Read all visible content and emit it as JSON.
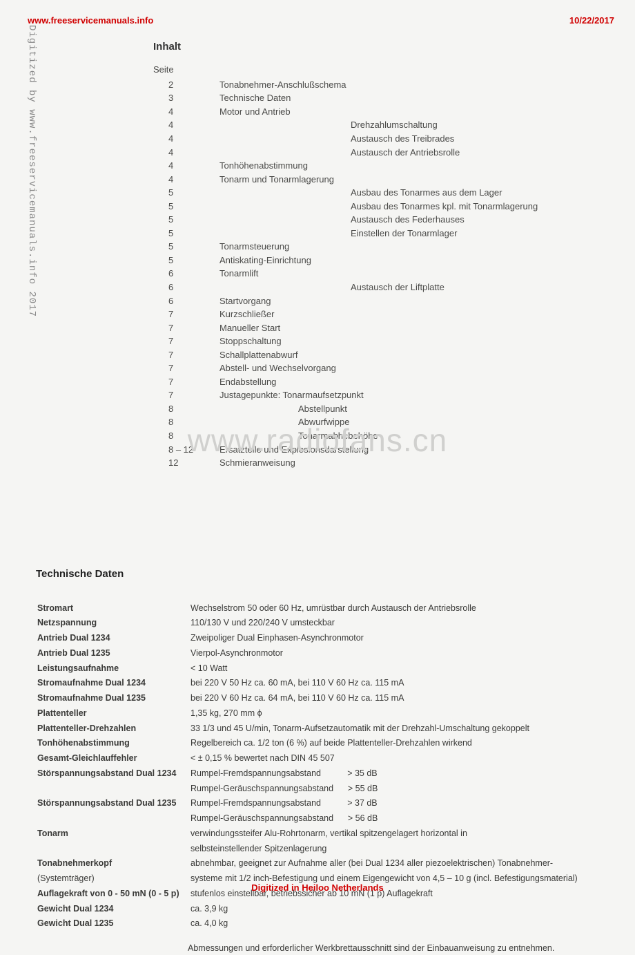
{
  "header": {
    "url": "www.freeservicemanuals.info",
    "date": "10/22/2017"
  },
  "sideText": "Digitized by www.freeservicemanuals.info 2017",
  "watermark": "www.radiofans.cn",
  "footer": "Digitized in Heiloo Netherlands",
  "inhalt": {
    "title": "Inhalt",
    "seiteLabel": "Seite",
    "rows": [
      {
        "p": "2",
        "t": "Tonabnehmer-Anschlußschema",
        "i": 0
      },
      {
        "p": "3",
        "t": "Technische Daten",
        "i": 0
      },
      {
        "p": "4",
        "t": "Motor und Antrieb",
        "i": 0
      },
      {
        "p": "4",
        "t": "Drehzahlumschaltung",
        "i": 1
      },
      {
        "p": "4",
        "t": "Austausch des Treibrades",
        "i": 1
      },
      {
        "p": "4",
        "t": "Austausch der Antriebsrolle",
        "i": 1
      },
      {
        "p": "4",
        "t": "Tonhöhenabstimmung",
        "i": 0
      },
      {
        "p": "4",
        "t": "Tonarm und Tonarmlagerung",
        "i": 0
      },
      {
        "p": "5",
        "t": "Ausbau des Tonarmes aus dem Lager",
        "i": 1
      },
      {
        "p": "5",
        "t": "Ausbau des Tonarmes kpl. mit Tonarmlagerung",
        "i": 1
      },
      {
        "p": "5",
        "t": "Austausch des Federhauses",
        "i": 1
      },
      {
        "p": "5",
        "t": "Einstellen der Tonarmlager",
        "i": 1
      },
      {
        "p": "5",
        "t": "Tonarmsteuerung",
        "i": 0
      },
      {
        "p": "5",
        "t": "Antiskating-Einrichtung",
        "i": 0
      },
      {
        "p": "6",
        "t": "Tonarmlift",
        "i": 0
      },
      {
        "p": "6",
        "t": "Austausch der Liftplatte",
        "i": 1
      },
      {
        "p": "6",
        "t": "Startvorgang",
        "i": 0
      },
      {
        "p": "7",
        "t": "Kurzschließer",
        "i": 0
      },
      {
        "p": "7",
        "t": "Manueller Start",
        "i": 0
      },
      {
        "p": "7",
        "t": "Stoppschaltung",
        "i": 0
      },
      {
        "p": "7",
        "t": "Schallplattenabwurf",
        "i": 0
      },
      {
        "p": "7",
        "t": "Abstell- und Wechselvorgang",
        "i": 0
      },
      {
        "p": "7",
        "t": "Endabstellung",
        "i": 0
      },
      {
        "p": "7",
        "t": "Justagepunkte:   Tonarmaufsetzpunkt",
        "i": 0
      },
      {
        "p": "8",
        "t": "Abstellpunkt",
        "i": 2
      },
      {
        "p": "8",
        "t": "Abwurfwippe",
        "i": 2
      },
      {
        "p": "8",
        "t": "Tonarmabhebehöhe",
        "i": 2
      },
      {
        "p": "8 – 12",
        "t": "Ersatzteile und Explosionsdarstellung",
        "i": 0
      },
      {
        "p": "12",
        "t": "Schmieranweisung",
        "i": 0
      }
    ]
  },
  "tech": {
    "title": "Technische Daten",
    "rows": [
      {
        "l": "Stromart",
        "v": "Wechselstrom 50 oder 60 Hz, umrüstbar durch Austausch der Antriebsrolle"
      },
      {
        "l": "Netzspannung",
        "v": "110/130 V und 220/240 V umsteckbar"
      },
      {
        "l": "Antrieb Dual 1234",
        "v": "Zweipoliger Dual Einphasen-Asynchronmotor"
      },
      {
        "l": "Antrieb Dual 1235",
        "v": "Vierpol-Asynchronmotor"
      },
      {
        "l": "Leistungsaufnahme",
        "v": "< 10 Watt"
      },
      {
        "l": "Stromaufnahme Dual 1234",
        "v": "bei 220 V 50 Hz ca. 60 mA, bei 110 V 60 Hz ca. 115 mA"
      },
      {
        "l": "Stromaufnahme Dual 1235",
        "v": "bei 220 V 60 Hz ca. 64 mA, bei 110 V 60 Hz ca. 115 mA"
      },
      {
        "l": "Plattenteller",
        "v": "1,35 kg, 270 mm ϕ"
      },
      {
        "l": "Plattenteller-Drehzahlen",
        "v": "33 1/3 und 45 U/min, Tonarm-Aufsetzautomatik mit der Drehzahl-Umschaltung gekoppelt"
      },
      {
        "l": "Tonhöhenabstimmung",
        "v": "Regelbereich ca. 1/2 ton (6 %) auf beide Plattenteller-Drehzahlen wirkend"
      },
      {
        "l": "Gesamt-Gleichlauffehler",
        "v": "< ± 0,15 % bewertet nach DIN 45 507"
      },
      {
        "l": "Störspannungsabstand Dual 1234",
        "v": "Rumpel-Fremdspannungsabstand           > 35 dB"
      },
      {
        "l": "",
        "v": "Rumpel-Geräuschspannungsabstand      > 55 dB"
      },
      {
        "l": "Störspannungsabstand Dual 1235",
        "v": "Rumpel-Fremdspannungsabstand           > 37 dB"
      },
      {
        "l": "",
        "v": "Rumpel-Geräuschspannungsabstand      > 56 dB"
      },
      {
        "l": "Tonarm",
        "v": "verwindungssteifer Alu-Rohrtonarm, vertikal spitzengelagert horizontal in"
      },
      {
        "l": "",
        "v": "selbsteinstellender Spitzenlagerung"
      },
      {
        "l": "Tonabnehmerkopf",
        "v": "abnehmbar, geeignet zur Aufnahme aller (bei Dual 1234 aller piezoelektrischen) Tonabnehmer-"
      },
      {
        "l": "(Systemträger)",
        "v": "systeme mit 1/2 inch-Befestigung und einem Eigengewicht von 4,5 – 10 g (incl. Befestigungsmaterial)",
        "ln": true
      },
      {
        "l": "Auflagekraft von 0 - 50 mN (0 - 5 p)",
        "v": "stufenlos einstellbar, betriebssicher ab 10 mN (1 p) Auflagekraft",
        "lmix": true
      },
      {
        "l": "Gewicht Dual 1234",
        "v": "ca. 3,9 kg"
      },
      {
        "l": "Gewicht Dual 1235",
        "v": "ca. 4,0 kg"
      }
    ],
    "note": "Abmessungen und erforderlicher Werkbrettausschnitt sind der Einbauanweisung zu entnehmen."
  }
}
